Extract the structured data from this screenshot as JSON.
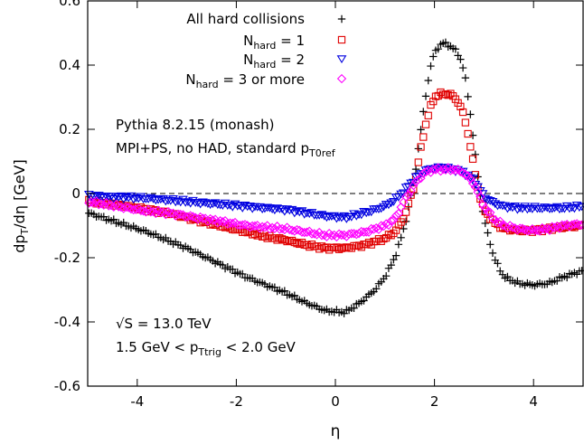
{
  "chart_data": {
    "type": "scatter",
    "xlabel": "η",
    "ylabel": "dp_T/dη [GeV]",
    "xlim": [
      -5,
      5
    ],
    "ylim": [
      -0.6,
      0.6
    ],
    "xticks": [
      -4,
      -2,
      0,
      2,
      4
    ],
    "yticks": [
      -0.6,
      -0.4,
      -0.2,
      0,
      0.2,
      0.4,
      0.6
    ],
    "xtick_labels": [
      "-4",
      "-2",
      "0",
      "2",
      "4"
    ],
    "ytick_labels": [
      "-0.6",
      "-0.4",
      "-0.2",
      "0",
      "0.2",
      "0.4",
      "0.6"
    ],
    "zero_line": true,
    "legend_position": "top-right",
    "annotations": [
      "Pythia 8.2.15 (monash)",
      "MPI+PS, no HAD, standard p_T0ref",
      "√S = 13.0 TeV",
      "1.5 GeV < p_Ttrig < 2.0 GeV"
    ],
    "series": [
      {
        "name": "All hard collisions",
        "marker": "plus",
        "color": "#000000",
        "x": [
          -5.0,
          -4.6,
          -4.2,
          -3.8,
          -3.4,
          -3.0,
          -2.6,
          -2.2,
          -1.8,
          -1.4,
          -1.0,
          -0.6,
          -0.2,
          0.2,
          0.5,
          0.8,
          1.0,
          1.2,
          1.4,
          1.6,
          1.7,
          1.8,
          1.9,
          2.0,
          2.1,
          2.2,
          2.3,
          2.4,
          2.5,
          2.6,
          2.7,
          2.8,
          2.9,
          3.0,
          3.2,
          3.4,
          3.7,
          4.0,
          4.3,
          4.6,
          5.0
        ],
        "y": [
          -0.06,
          -0.08,
          -0.1,
          -0.12,
          -0.145,
          -0.17,
          -0.2,
          -0.23,
          -0.26,
          -0.285,
          -0.31,
          -0.34,
          -0.365,
          -0.37,
          -0.34,
          -0.3,
          -0.26,
          -0.2,
          -0.1,
          0.05,
          0.17,
          0.28,
          0.38,
          0.44,
          0.46,
          0.47,
          0.46,
          0.45,
          0.43,
          0.38,
          0.28,
          0.15,
          0.02,
          -0.08,
          -0.2,
          -0.26,
          -0.28,
          -0.285,
          -0.28,
          -0.26,
          -0.24
        ]
      },
      {
        "name": "N_hard = 1",
        "marker": "square",
        "color": "#e00000",
        "x": [
          -5.0,
          -4.6,
          -4.2,
          -3.8,
          -3.4,
          -3.0,
          -2.6,
          -2.2,
          -1.8,
          -1.4,
          -1.0,
          -0.6,
          -0.2,
          0.2,
          0.6,
          1.0,
          1.2,
          1.4,
          1.6,
          1.7,
          1.8,
          1.9,
          2.0,
          2.1,
          2.2,
          2.3,
          2.4,
          2.5,
          2.6,
          2.7,
          2.8,
          2.9,
          3.0,
          3.2,
          3.4,
          3.7,
          4.0,
          4.3,
          4.6,
          5.0
        ],
        "y": [
          -0.025,
          -0.03,
          -0.04,
          -0.05,
          -0.06,
          -0.075,
          -0.09,
          -0.105,
          -0.12,
          -0.135,
          -0.145,
          -0.16,
          -0.17,
          -0.17,
          -0.16,
          -0.14,
          -0.12,
          -0.07,
          0.03,
          0.12,
          0.2,
          0.26,
          0.3,
          0.31,
          0.31,
          0.31,
          0.3,
          0.28,
          0.24,
          0.17,
          0.08,
          0.0,
          -0.05,
          -0.09,
          -0.11,
          -0.115,
          -0.115,
          -0.11,
          -0.105,
          -0.1
        ]
      },
      {
        "name": "N_hard = 2",
        "marker": "triangle-down",
        "color": "#0000e0",
        "x": [
          -5.0,
          -4.6,
          -4.2,
          -3.8,
          -3.4,
          -3.0,
          -2.6,
          -2.2,
          -1.8,
          -1.4,
          -1.0,
          -0.6,
          -0.2,
          0.2,
          0.6,
          1.0,
          1.2,
          1.4,
          1.6,
          1.8,
          2.0,
          2.2,
          2.4,
          2.6,
          2.8,
          3.0,
          3.2,
          3.4,
          3.7,
          4.0,
          4.3,
          4.6,
          5.0
        ],
        "y": [
          -0.005,
          -0.01,
          -0.012,
          -0.015,
          -0.02,
          -0.025,
          -0.03,
          -0.035,
          -0.04,
          -0.045,
          -0.05,
          -0.06,
          -0.07,
          -0.075,
          -0.06,
          -0.04,
          -0.02,
          0.01,
          0.045,
          0.07,
          0.08,
          0.08,
          0.075,
          0.065,
          0.04,
          -0.01,
          -0.03,
          -0.04,
          -0.045,
          -0.045,
          -0.045,
          -0.045,
          -0.04
        ]
      },
      {
        "name": "N_hard = 3 or more",
        "marker": "diamond",
        "color": "#ff00ff",
        "x": [
          -5.0,
          -4.6,
          -4.2,
          -3.8,
          -3.4,
          -3.0,
          -2.6,
          -2.2,
          -1.8,
          -1.4,
          -1.0,
          -0.6,
          -0.2,
          0.2,
          0.6,
          1.0,
          1.2,
          1.4,
          1.6,
          1.8,
          2.0,
          2.2,
          2.4,
          2.6,
          2.8,
          3.0,
          3.2,
          3.4,
          3.7,
          4.0,
          4.3,
          4.6,
          5.0
        ],
        "y": [
          -0.025,
          -0.035,
          -0.045,
          -0.055,
          -0.06,
          -0.07,
          -0.08,
          -0.09,
          -0.1,
          -0.105,
          -0.11,
          -0.12,
          -0.13,
          -0.13,
          -0.12,
          -0.1,
          -0.08,
          -0.02,
          0.03,
          0.065,
          0.075,
          0.075,
          0.075,
          0.065,
          0.03,
          -0.04,
          -0.08,
          -0.1,
          -0.11,
          -0.115,
          -0.11,
          -0.1,
          -0.095
        ]
      }
    ]
  }
}
